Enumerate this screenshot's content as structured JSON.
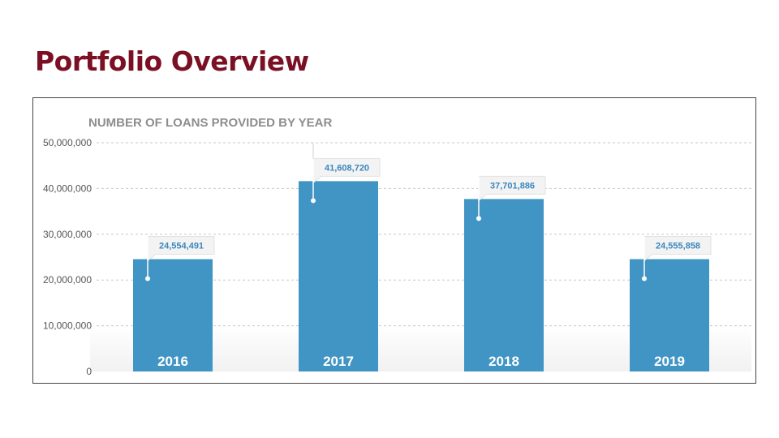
{
  "slide": {
    "title": "Portfolio Overview"
  },
  "chart_data": {
    "type": "bar",
    "title": "NUMBER OF LOANS PROVIDED BY YEAR",
    "xlabel": "",
    "ylabel": "",
    "categories": [
      "2016",
      "2017",
      "2018",
      "2019"
    ],
    "values": [
      24554491,
      41608720,
      37701886,
      24555858
    ],
    "data_labels": [
      "24,554,491",
      "41,608,720",
      "37,701,886",
      "24,555,858"
    ],
    "ylim": [
      0,
      50000000
    ],
    "yticks": [
      0,
      10000000,
      20000000,
      30000000,
      40000000,
      50000000
    ],
    "ytick_labels": [
      "0",
      "10,000,000",
      "20,000,000",
      "30,000,000",
      "40,000,000",
      "50,000,000"
    ],
    "grid": true,
    "legend": "none",
    "colors": {
      "bar": "#4195c4",
      "label": "#3b87bd",
      "grid": "#c8c8c8"
    }
  }
}
